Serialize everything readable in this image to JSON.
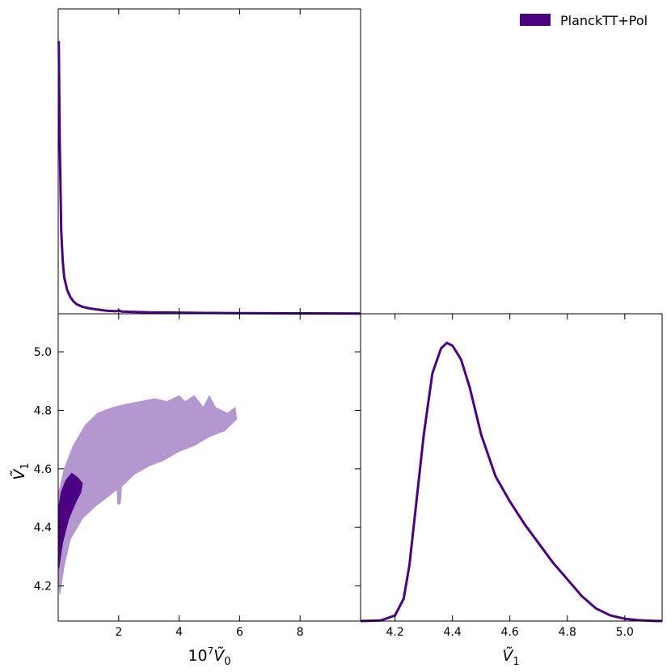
{
  "legend": {
    "label": "PlanckTT+Pol",
    "color": "#4b0082",
    "placement": "top-right"
  },
  "colors": {
    "line": "#4b0082",
    "inner_contour": "#4b0082",
    "outer_contour": "#b497cf"
  },
  "chart_data": [
    {
      "panel": "marginal-V0",
      "type": "line",
      "xlabel": "",
      "ylabel": "",
      "xlim": [
        0.0,
        10.0
      ],
      "ylim": [
        0,
        1.0
      ],
      "series": [
        {
          "x": [
            0.02,
            0.05,
            0.1,
            0.15,
            0.2,
            0.3,
            0.4,
            0.5,
            0.6,
            0.8,
            1.0,
            1.3,
            1.6,
            1.9,
            2.0,
            2.1,
            2.4,
            3.0,
            4.0,
            5.0,
            6.0,
            8.0,
            10.0
          ],
          "y": [
            0.98,
            0.62,
            0.3,
            0.19,
            0.13,
            0.085,
            0.06,
            0.045,
            0.035,
            0.025,
            0.02,
            0.015,
            0.011,
            0.009,
            0.012,
            0.008,
            0.007,
            0.005,
            0.004,
            0.003,
            0.002,
            0.0015,
            0.001
          ]
        }
      ]
    },
    {
      "panel": "joint-V0-V1",
      "type": "contour",
      "xlabel": "10^7 Ṽ_0",
      "ylabel": "Ṽ_1",
      "xlim": [
        0.0,
        10.0
      ],
      "ylim": [
        4.08,
        5.13
      ],
      "xticks": [
        2,
        4,
        6,
        8
      ],
      "yticks": [
        4.2,
        4.4,
        4.6,
        4.8,
        5.0
      ],
      "regions": [
        {
          "level": "95%",
          "points": [
            [
              0.05,
              4.17
            ],
            [
              0.2,
              4.27
            ],
            [
              0.4,
              4.36
            ],
            [
              0.8,
              4.43
            ],
            [
              1.2,
              4.47
            ],
            [
              1.7,
              4.51
            ],
            [
              1.95,
              4.53
            ],
            [
              1.97,
              4.48
            ],
            [
              2.05,
              4.48
            ],
            [
              2.1,
              4.54
            ],
            [
              2.5,
              4.58
            ],
            [
              3.0,
              4.61
            ],
            [
              3.5,
              4.63
            ],
            [
              4.0,
              4.66
            ],
            [
              4.5,
              4.68
            ],
            [
              5.0,
              4.71
            ],
            [
              5.5,
              4.73
            ],
            [
              5.9,
              4.77
            ],
            [
              5.85,
              4.81
            ],
            [
              5.6,
              4.79
            ],
            [
              5.2,
              4.81
            ],
            [
              5.0,
              4.85
            ],
            [
              4.8,
              4.81
            ],
            [
              4.5,
              4.85
            ],
            [
              4.2,
              4.83
            ],
            [
              4.0,
              4.85
            ],
            [
              3.6,
              4.83
            ],
            [
              3.2,
              4.84
            ],
            [
              2.7,
              4.83
            ],
            [
              2.2,
              4.82
            ],
            [
              1.8,
              4.81
            ],
            [
              1.3,
              4.79
            ],
            [
              0.9,
              4.75
            ],
            [
              0.5,
              4.68
            ],
            [
              0.2,
              4.6
            ],
            [
              0.02,
              4.52
            ],
            [
              0.02,
              4.22
            ]
          ]
        },
        {
          "level": "68%",
          "points": [
            [
              0.02,
              4.26
            ],
            [
              0.15,
              4.35
            ],
            [
              0.35,
              4.43
            ],
            [
              0.6,
              4.49
            ],
            [
              0.75,
              4.52
            ],
            [
              0.8,
              4.55
            ],
            [
              0.65,
              4.57
            ],
            [
              0.45,
              4.585
            ],
            [
              0.25,
              4.56
            ],
            [
              0.1,
              4.52
            ],
            [
              0.02,
              4.47
            ]
          ]
        }
      ]
    },
    {
      "panel": "marginal-V1",
      "type": "line",
      "xlabel": "Ṽ_1",
      "ylabel": "",
      "xlim": [
        4.08,
        5.13
      ],
      "ylim": [
        0,
        1.0
      ],
      "xticks": [
        4.2,
        4.4,
        4.6,
        4.8,
        5.0
      ],
      "xtick_labels": [
        "4.2",
        "4.4",
        "4.6",
        "4.8",
        "5.0"
      ],
      "series": [
        {
          "x": [
            4.08,
            4.15,
            4.2,
            4.23,
            4.25,
            4.28,
            4.3,
            4.33,
            4.36,
            4.38,
            4.4,
            4.43,
            4.46,
            4.5,
            4.55,
            4.6,
            4.65,
            4.7,
            4.75,
            4.8,
            4.85,
            4.9,
            4.95,
            5.0,
            5.05,
            5.1,
            5.13
          ],
          "y": [
            0.0,
            0.002,
            0.02,
            0.08,
            0.2,
            0.48,
            0.67,
            0.89,
            0.98,
            1.0,
            0.99,
            0.94,
            0.84,
            0.67,
            0.52,
            0.43,
            0.35,
            0.28,
            0.21,
            0.15,
            0.09,
            0.045,
            0.02,
            0.008,
            0.003,
            0.001,
            0.0
          ]
        }
      ]
    }
  ]
}
